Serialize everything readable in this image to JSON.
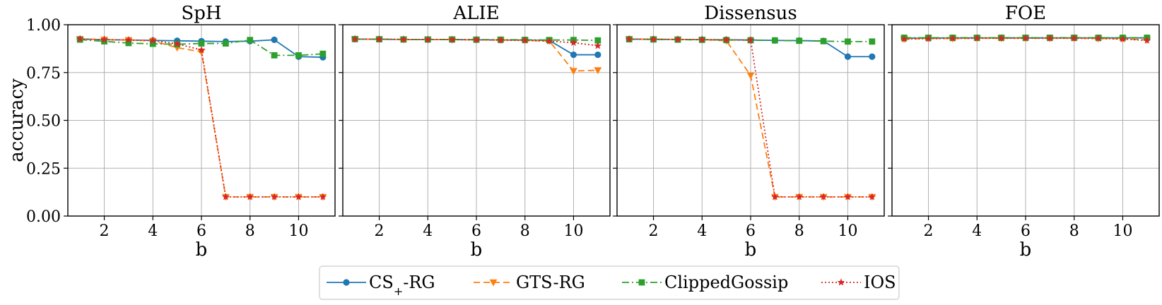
{
  "chart_data": {
    "type": "line",
    "ylabel": "accuracy",
    "xlabel": "b",
    "x": [
      1,
      2,
      3,
      4,
      5,
      6,
      7,
      8,
      9,
      10,
      11
    ],
    "xlim": [
      0.5,
      11.5
    ],
    "ylim": [
      0.0,
      1.0
    ],
    "xticks": [
      2,
      4,
      6,
      8,
      10
    ],
    "yticks": [
      "0.00",
      "0.25",
      "0.50",
      "0.75",
      "1.00"
    ],
    "grid": true,
    "legend": {
      "position": "bottom-center",
      "entries": [
        {
          "label": "CS",
          "subscript": "+",
          "suffix": "-RG"
        },
        {
          "label": "GTS-RG"
        },
        {
          "label": "ClippedGossip"
        },
        {
          "label": "IOS"
        }
      ]
    },
    "series_styles": [
      {
        "name": "CS+-RG",
        "color": "#1f77b4",
        "dash": "",
        "marker": "circle"
      },
      {
        "name": "GTS-RG",
        "color": "#ff7f0e",
        "dash": "9,5",
        "marker": "triangle-down"
      },
      {
        "name": "ClippedGossip",
        "color": "#2ca02c",
        "dash": "10,4,2,4",
        "marker": "square"
      },
      {
        "name": "IOS",
        "color": "#d62728",
        "dash": "2,3",
        "marker": "star"
      }
    ],
    "panels": [
      {
        "title": "SpH",
        "series": [
          {
            "name": "CS+-RG",
            "values": [
              0.925,
              0.922,
              0.92,
              0.918,
              0.916,
              0.914,
              0.912,
              0.914,
              0.921,
              0.833,
              0.83
            ]
          },
          {
            "name": "GTS-RG",
            "values": [
              0.925,
              0.922,
              0.92,
              0.915,
              0.88,
              0.858,
              0.1,
              0.1,
              0.1,
              0.1,
              0.1
            ]
          },
          {
            "name": "ClippedGossip",
            "values": [
              0.922,
              0.913,
              0.904,
              0.9,
              0.898,
              0.902,
              0.902,
              0.92,
              0.84,
              0.84,
              0.848
            ]
          },
          {
            "name": "IOS",
            "values": [
              0.926,
              0.922,
              0.92,
              0.917,
              0.9,
              0.868,
              0.1,
              0.1,
              0.1,
              0.1,
              0.1
            ]
          }
        ]
      },
      {
        "title": "ALIE",
        "series": [
          {
            "name": "CS+-RG",
            "values": [
              0.925,
              0.924,
              0.923,
              0.922,
              0.922,
              0.921,
              0.92,
              0.92,
              0.918,
              0.843,
              0.843
            ]
          },
          {
            "name": "GTS-RG",
            "values": [
              0.925,
              0.924,
              0.923,
              0.922,
              0.922,
              0.921,
              0.92,
              0.918,
              0.915,
              0.758,
              0.762
            ]
          },
          {
            "name": "ClippedGossip",
            "values": [
              0.925,
              0.924,
              0.923,
              0.923,
              0.923,
              0.922,
              0.922,
              0.921,
              0.92,
              0.92,
              0.918
            ]
          },
          {
            "name": "IOS",
            "values": [
              0.925,
              0.924,
              0.923,
              0.922,
              0.922,
              0.921,
              0.919,
              0.918,
              0.914,
              0.906,
              0.89
            ]
          }
        ]
      },
      {
        "title": "Dissensus",
        "series": [
          {
            "name": "CS+-RG",
            "values": [
              0.925,
              0.924,
              0.923,
              0.922,
              0.921,
              0.92,
              0.918,
              0.917,
              0.915,
              0.833,
              0.833
            ]
          },
          {
            "name": "GTS-RG",
            "values": [
              0.925,
              0.924,
              0.923,
              0.922,
              0.916,
              0.735,
              0.1,
              0.1,
              0.1,
              0.1,
              0.1
            ]
          },
          {
            "name": "ClippedGossip",
            "values": [
              0.924,
              0.923,
              0.922,
              0.921,
              0.92,
              0.919,
              0.918,
              0.916,
              0.914,
              0.912,
              0.912
            ]
          },
          {
            "name": "IOS",
            "values": [
              0.925,
              0.924,
              0.923,
              0.922,
              0.921,
              0.92,
              0.1,
              0.1,
              0.1,
              0.1,
              0.1
            ]
          }
        ]
      },
      {
        "title": "FOE",
        "series": [
          {
            "name": "CS+-RG",
            "values": [
              0.93,
              0.93,
              0.931,
              0.931,
              0.931,
              0.931,
              0.931,
              0.931,
              0.931,
              0.931,
              0.931
            ]
          },
          {
            "name": "GTS-RG",
            "values": [
              0.925,
              0.928,
              0.928,
              0.929,
              0.929,
              0.929,
              0.929,
              0.929,
              0.928,
              0.926,
              0.92
            ]
          },
          {
            "name": "ClippedGossip",
            "values": [
              0.932,
              0.932,
              0.932,
              0.932,
              0.932,
              0.932,
              0.932,
              0.932,
              0.932,
              0.932,
              0.932
            ]
          },
          {
            "name": "IOS",
            "values": [
              0.925,
              0.927,
              0.928,
              0.929,
              0.929,
              0.929,
              0.929,
              0.929,
              0.928,
              0.925,
              0.918
            ]
          }
        ]
      }
    ]
  }
}
